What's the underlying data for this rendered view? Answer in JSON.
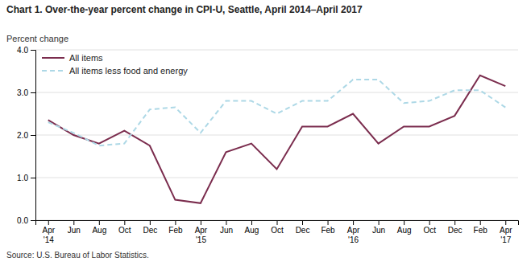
{
  "chart_data": {
    "type": "line",
    "title": "Chart 1. Over-the-year percent change in CPI-U, Seattle, April 2014–April  2017",
    "y_label": "Percent change",
    "source": "Source: U.S. Bureau of Labor Statistics.",
    "categories": [
      "Apr\n'14",
      "Jun",
      "Aug",
      "Oct",
      "Dec",
      "Feb",
      "Apr\n'15",
      "Jun",
      "Aug",
      "Oct",
      "Dec",
      "Feb",
      "Apr\n'16",
      "Jun",
      "Aug",
      "Oct",
      "Dec",
      "Feb",
      "Apr\n'17"
    ],
    "series": [
      {
        "name": "All items",
        "color": "#7B2D4E",
        "line_style": "solid",
        "values": [
          2.35,
          2.0,
          1.8,
          2.1,
          1.75,
          0.48,
          0.4,
          1.6,
          1.8,
          1.2,
          2.2,
          2.2,
          2.5,
          1.8,
          2.2,
          2.2,
          2.45,
          3.4,
          3.15
        ]
      },
      {
        "name": "All items less food and energy",
        "color": "#ADD8E6",
        "line_style": "dashed",
        "values": [
          2.3,
          2.05,
          1.75,
          1.8,
          2.6,
          2.65,
          2.05,
          2.8,
          2.8,
          2.5,
          2.8,
          2.8,
          3.3,
          3.3,
          2.75,
          2.8,
          3.05,
          3.05,
          2.65
        ]
      }
    ],
    "ylim": [
      0.0,
      4.0
    ],
    "yticks": [
      {
        "value": 0,
        "label": "0.0"
      },
      {
        "value": 1,
        "label": "1.0"
      },
      {
        "value": 2,
        "label": "2.0"
      },
      {
        "value": 3,
        "label": "3.0"
      },
      {
        "value": 4,
        "label": "4.0"
      }
    ],
    "grid": true,
    "legend": "upper left"
  }
}
